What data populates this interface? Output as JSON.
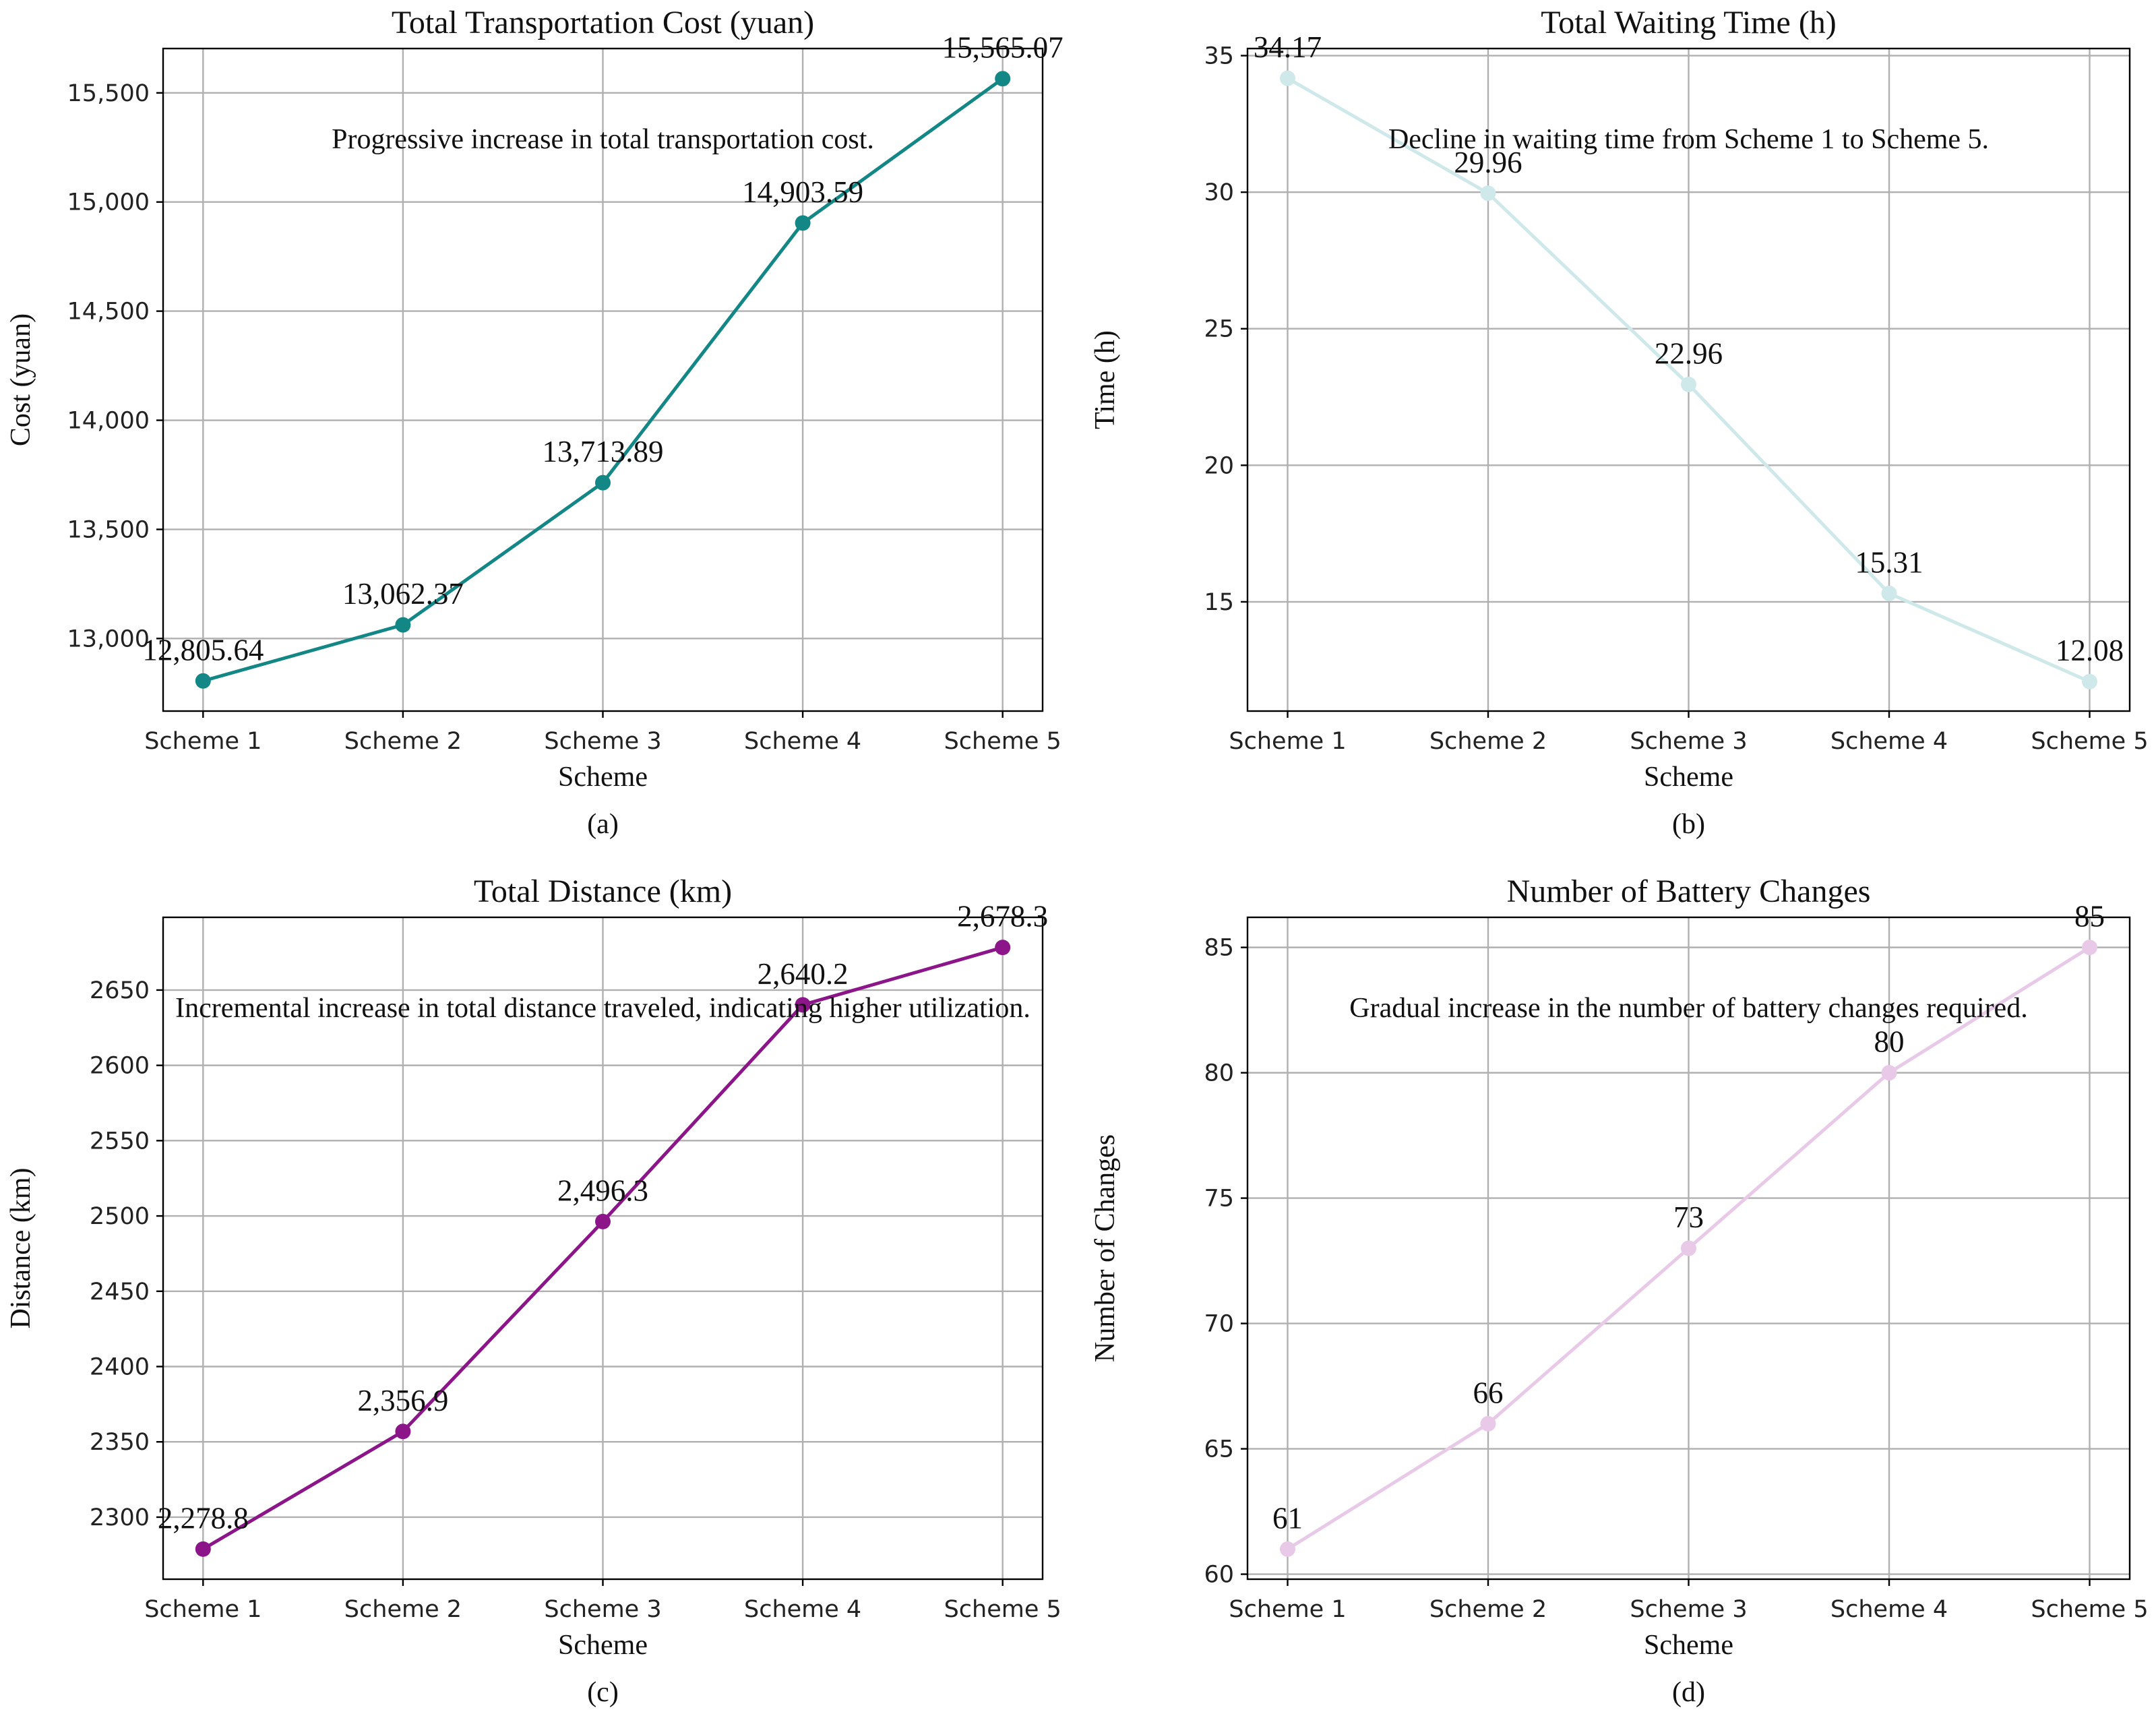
{
  "chart_data": [
    {
      "type": "line",
      "title": "Total Transportation Cost (yuan)",
      "xlabel": "Scheme",
      "ylabel": "Cost (yuan)",
      "caption": "(a)",
      "annotation": "Progressive increase in total transportation cost.",
      "categories": [
        "Scheme 1",
        "Scheme 2",
        "Scheme 3",
        "Scheme 4",
        "Scheme 5"
      ],
      "values": [
        12805.64,
        13062.37,
        13713.89,
        14903.59,
        15565.07
      ],
      "value_labels": [
        "12,805.64",
        "13,062.37",
        "13,713.89",
        "14,903.59",
        "15,565.07"
      ],
      "ylim": [
        12667.5,
        15703.2
      ],
      "yticks": [
        13000,
        13500,
        14000,
        14500,
        15000,
        15500
      ],
      "ytick_labels": [
        "13,000",
        "13,500",
        "14,000",
        "14,500",
        "15,000",
        "15,500"
      ],
      "color": "#138686",
      "grid": true
    },
    {
      "type": "line",
      "title": "Total Waiting Time (h)",
      "xlabel": "Scheme",
      "ylabel": "Time (h)",
      "caption": "(b)",
      "annotation": "Decline in waiting time from Scheme 1 to Scheme 5.",
      "categories": [
        "Scheme 1",
        "Scheme 2",
        "Scheme 3",
        "Scheme 4",
        "Scheme 5"
      ],
      "values": [
        34.17,
        29.96,
        22.96,
        15.31,
        12.08
      ],
      "value_labels": [
        "34.17",
        "29.96",
        "22.96",
        "15.31",
        "12.08"
      ],
      "ylim": [
        11.0,
        35.26
      ],
      "yticks": [
        15,
        20,
        25,
        30,
        35
      ],
      "ytick_labels": [
        "15",
        "20",
        "25",
        "30",
        "35"
      ],
      "color": "#cfe9ea",
      "grid": true
    },
    {
      "type": "line",
      "title": "Total Distance (km)",
      "xlabel": "Scheme",
      "ylabel": "Distance (km)",
      "caption": "(c)",
      "annotation": "Incremental increase in total distance traveled, indicating higher utilization.",
      "categories": [
        "Scheme 1",
        "Scheme 2",
        "Scheme 3",
        "Scheme 4",
        "Scheme 5"
      ],
      "values": [
        2278.8,
        2356.9,
        2496.3,
        2640.2,
        2678.3
      ],
      "value_labels": [
        "2,278.8",
        "2,356.9",
        "2,496.3",
        "2,640.2",
        "2,678.3"
      ],
      "ylim": [
        2258.8,
        2698.3
      ],
      "yticks": [
        2300,
        2350,
        2400,
        2450,
        2500,
        2550,
        2600,
        2650
      ],
      "ytick_labels": [
        "2300",
        "2350",
        "2400",
        "2450",
        "2500",
        "2550",
        "2600",
        "2650"
      ],
      "color": "#8b1589",
      "grid": true
    },
    {
      "type": "line",
      "title": "Number of Battery Changes",
      "xlabel": "Scheme",
      "ylabel": "Number of Changes",
      "caption": "(d)",
      "annotation": "Gradual increase in the number of battery changes required.",
      "categories": [
        "Scheme 1",
        "Scheme 2",
        "Scheme 3",
        "Scheme 4",
        "Scheme 5"
      ],
      "values": [
        61,
        66,
        73,
        80,
        85
      ],
      "value_labels": [
        "61",
        "66",
        "73",
        "80",
        "85"
      ],
      "ylim": [
        59.8,
        86.2
      ],
      "yticks": [
        60,
        65,
        70,
        75,
        80,
        85
      ],
      "ytick_labels": [
        "60",
        "65",
        "70",
        "75",
        "80",
        "85"
      ],
      "color": "#e8cae8",
      "grid": true
    }
  ]
}
